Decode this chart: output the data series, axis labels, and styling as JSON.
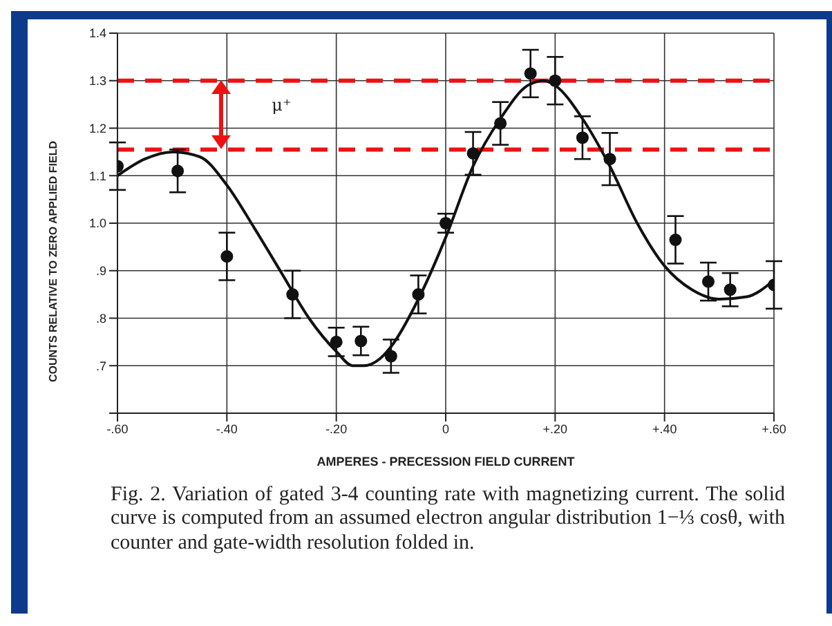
{
  "chart_data": {
    "type": "scatter",
    "xlabel": "AMPERES - PRECESSION FIELD CURRENT",
    "ylabel": "COUNTS RELATIVE TO ZERO APPLIED FIELD",
    "xlim": [
      -0.6,
      0.6
    ],
    "ylim": [
      0.6,
      1.4
    ],
    "xticks": [
      {
        "value": -0.6,
        "label": "-.60"
      },
      {
        "value": -0.4,
        "label": "-.40"
      },
      {
        "value": -0.2,
        "label": "-.20"
      },
      0,
      {
        "value": 0.2,
        "label": "+.20"
      },
      {
        "value": 0.4,
        "label": "+.40"
      },
      {
        "value": 0.6,
        "label": "+.60"
      }
    ],
    "yticks": [
      {
        "value": 0.6,
        "label": null
      },
      {
        "value": 0.7,
        "label": ".7"
      },
      {
        "value": 0.8,
        "label": ".8"
      },
      {
        "value": 0.9,
        "label": ".9"
      },
      {
        "value": 1.0,
        "label": "1.0"
      },
      {
        "value": 1.1,
        "label": "1.1"
      },
      {
        "value": 1.2,
        "label": "1.2"
      },
      {
        "value": 1.3,
        "label": "1.3"
      },
      {
        "value": 1.4,
        "label": "1.4"
      }
    ],
    "grid": true,
    "series": [
      {
        "color": "#111111",
        "marker": "circle",
        "x": [
          -0.6,
          -0.49,
          -0.4,
          -0.28,
          -0.2,
          -0.155,
          -0.1,
          -0.05,
          0,
          0.05,
          0.1,
          0.155,
          0.2,
          0.25,
          0.3,
          0.42,
          0.48,
          0.52,
          0.6
        ],
        "values": [
          1.12,
          1.11,
          0.93,
          0.85,
          0.75,
          0.752,
          0.72,
          0.85,
          1.0,
          1.147,
          1.21,
          1.315,
          1.3,
          1.18,
          1.135,
          0.965,
          0.877,
          0.86,
          0.87
        ],
        "errors": [
          0.05,
          0.045,
          0.05,
          0.05,
          0.03,
          0.03,
          0.035,
          0.04,
          0.02,
          0.045,
          0.045,
          0.05,
          0.05,
          0.045,
          0.055,
          0.05,
          0.04,
          0.035,
          0.05
        ]
      },
      {
        "type": "line",
        "color": "#111111",
        "line_style": "solid",
        "x": [
          -0.6,
          -0.55,
          -0.5,
          -0.45,
          -0.4,
          -0.35,
          -0.3,
          -0.25,
          -0.2,
          -0.17,
          -0.15,
          -0.12,
          -0.1,
          -0.05,
          0,
          0.05,
          0.1,
          0.15,
          0.18,
          0.2,
          0.25,
          0.3,
          0.35,
          0.4,
          0.45,
          0.5,
          0.55,
          0.6
        ],
        "values": [
          1.1,
          1.135,
          1.15,
          1.14,
          1.08,
          0.99,
          0.895,
          0.8,
          0.73,
          0.7,
          0.7,
          0.715,
          0.74,
          0.84,
          0.97,
          1.12,
          1.22,
          1.29,
          1.3,
          1.29,
          1.22,
          1.12,
          1.0,
          0.91,
          0.86,
          0.84,
          0.845,
          0.88
        ]
      }
    ],
    "ref_lines": [
      {
        "axis": "y",
        "value": 1.3,
        "color": "#ee1111",
        "line_style": "dashed"
      },
      {
        "axis": "y",
        "value": 1.155,
        "color": "#ee1111",
        "line_style": "dashed"
      }
    ],
    "annotations": [
      "μ⁺",
      "Fig. 2. Variation of gated 3-4 counting rate with magnetizing current. The solid curve is computed from an assumed electron angular distribution 1−⅓ cosθ, with counter and gate-width resolution folded in."
    ]
  }
}
